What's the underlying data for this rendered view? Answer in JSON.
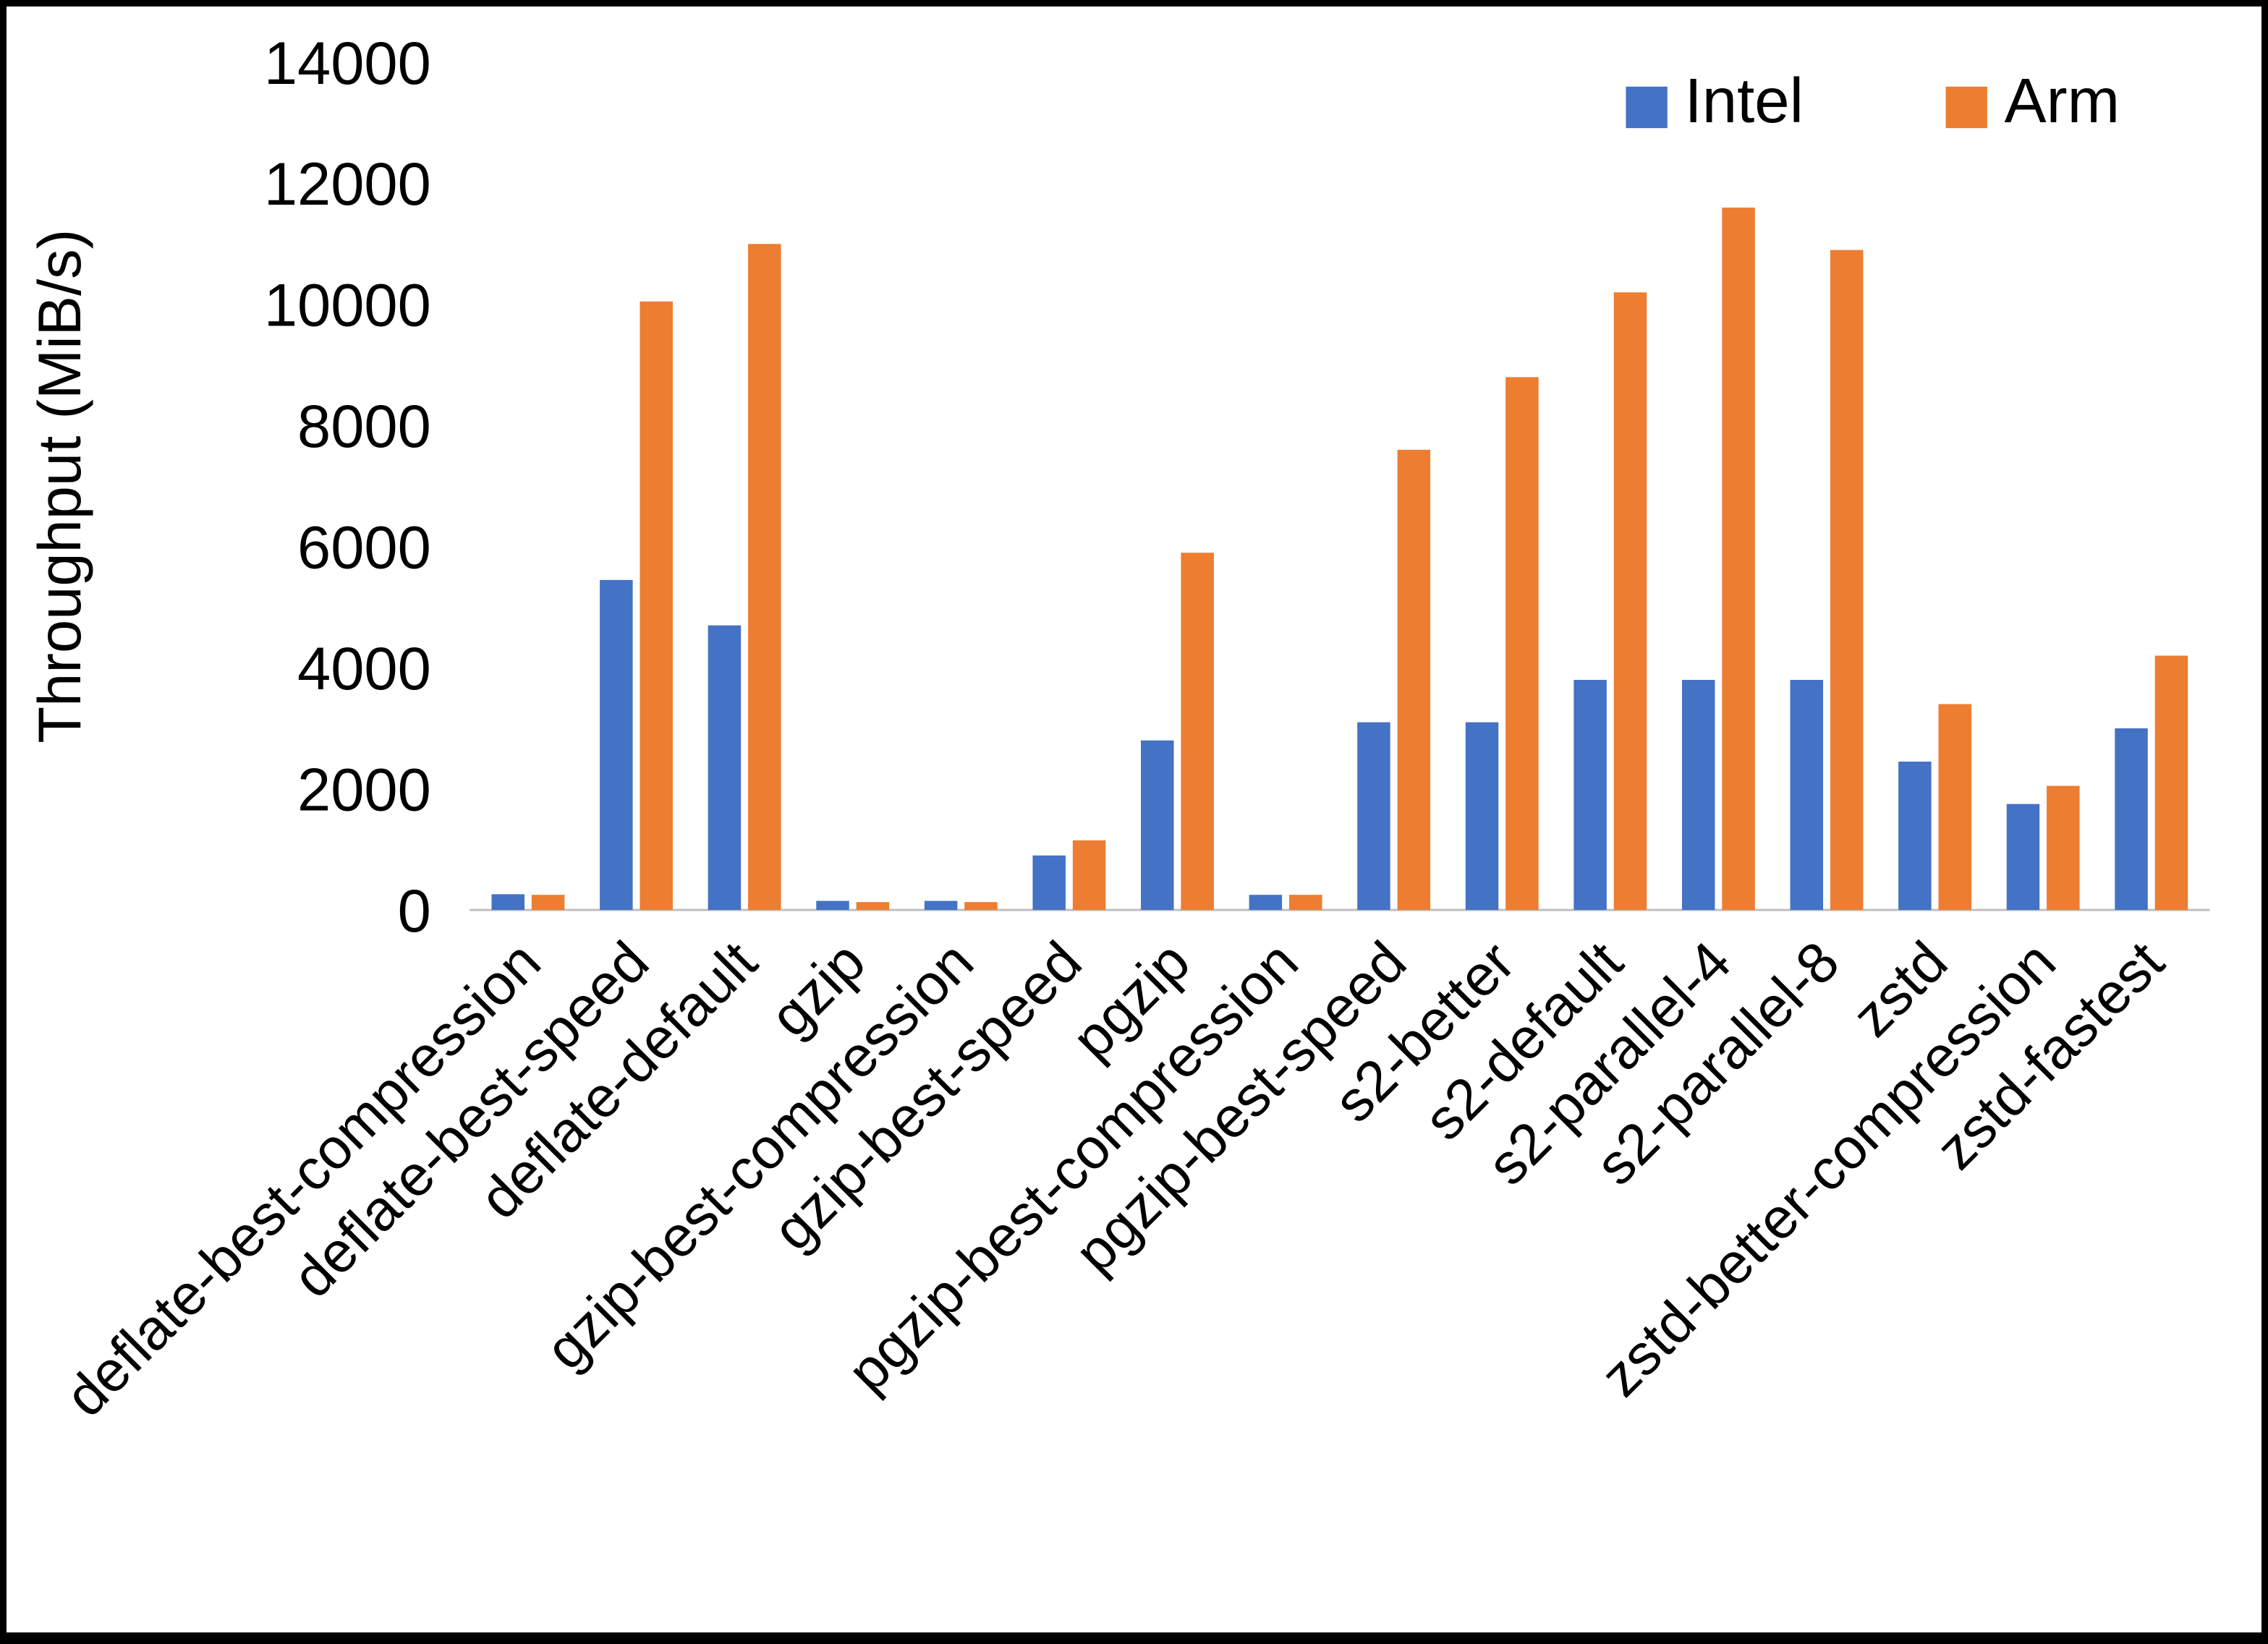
{
  "chart_data": {
    "type": "bar",
    "title": "",
    "xlabel": "",
    "ylabel": "Throughput (MiB/s)",
    "ylim": [
      0,
      14000
    ],
    "ytick_step": 2000,
    "grid": false,
    "legend_position": "top-right",
    "axis_line_color": "#BFBFBF",
    "text_color": "#000000",
    "categories": [
      "deflate-best-compression",
      "deflate-best-speed",
      "deflate-default",
      "gzip",
      "gzip-best-compression",
      "gzip-best-speed",
      "pgzip",
      "pgzip-best-compression",
      "pgzip-best-speed",
      "s2-better",
      "s2-default",
      "s2-parallel-4",
      "s2-parallel-8",
      "zstd",
      "zstd-better-compression",
      "zstd-fastest"
    ],
    "series": [
      {
        "name": "Intel",
        "color": "#4472C4",
        "values": [
          260,
          5450,
          4700,
          150,
          150,
          900,
          2800,
          250,
          3100,
          3100,
          3800,
          3800,
          3800,
          2450,
          1750,
          3000
        ]
      },
      {
        "name": "Arm",
        "color": "#ED7D31",
        "values": [
          250,
          10050,
          11000,
          130,
          130,
          1150,
          5900,
          250,
          7600,
          8800,
          10200,
          11600,
          10900,
          3400,
          2050,
          4200
        ]
      }
    ]
  }
}
